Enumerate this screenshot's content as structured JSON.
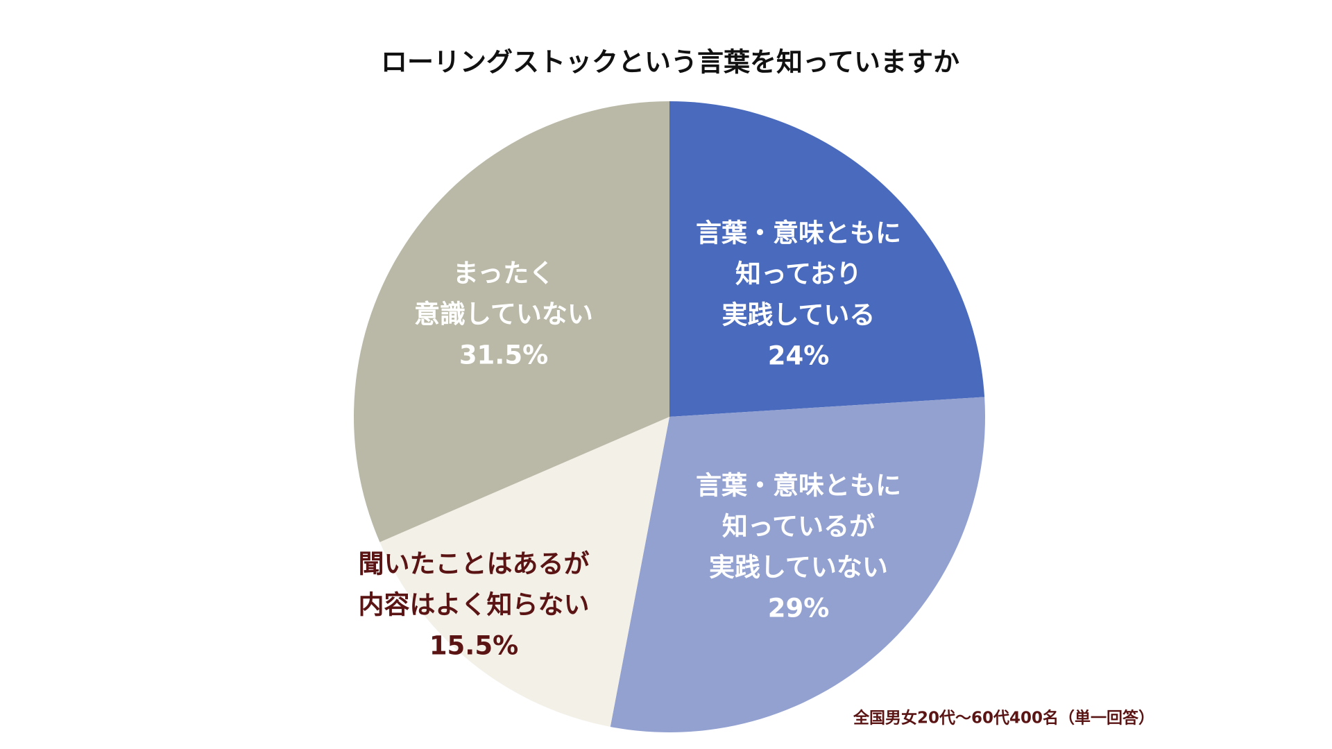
{
  "chart_data": {
    "type": "pie",
    "title": "ローリングストックという言葉を知っていますか",
    "categories": [
      [
        "言葉・意味ともに",
        "知っており",
        "実践している"
      ],
      [
        "言葉・意味ともに",
        "知っているが",
        "実践していない"
      ],
      [
        "聞いたことはあるが",
        "内容はよく知らない"
      ],
      [
        "まったく",
        "意識していない"
      ]
    ],
    "values": [
      24,
      29,
      15.5,
      31.5
    ],
    "value_labels": [
      "24%",
      "29%",
      "15.5%",
      "31.5%"
    ],
    "colors": [
      "#4a6bbd",
      "#93a1d1",
      "#f3f0e8",
      "#bab9a7"
    ],
    "label_colors": [
      "#ffffff",
      "#ffffff",
      "#5a1414",
      "#ffffff"
    ],
    "note": "全国男女20代〜60代400名（単一回答）"
  }
}
